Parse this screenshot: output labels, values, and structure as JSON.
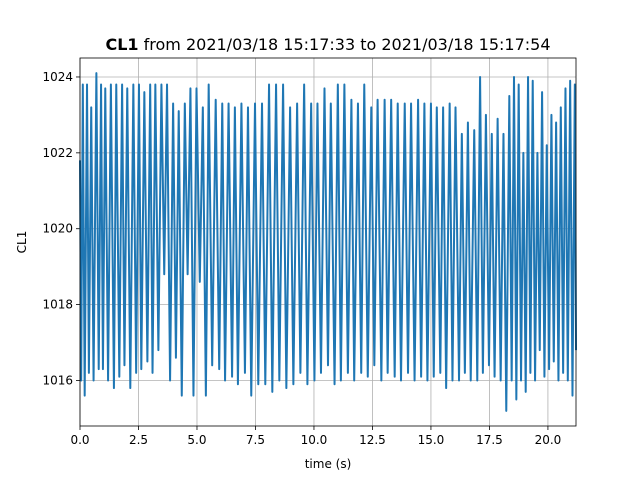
{
  "chart_data": {
    "type": "line",
    "title_bold": "CL1",
    "title_rest": " from 2021/03/18 15:17:33 to 2021/03/18 15:17:54",
    "xlabel": "time (s)",
    "ylabel": "CL1",
    "xlim": [
      0,
      21.2
    ],
    "ylim": [
      1014.8,
      1024.5
    ],
    "xticks": [
      0,
      2.5,
      5,
      7.5,
      10,
      12.5,
      15,
      17.5,
      20
    ],
    "xtick_labels": [
      "0.0",
      "2.5",
      "5.0",
      "7.5",
      "10.0",
      "12.5",
      "15.0",
      "17.5",
      "20.0"
    ],
    "yticks": [
      1016,
      1018,
      1020,
      1022,
      1024
    ],
    "ytick_labels": [
      "1016",
      "1018",
      "1020",
      "1022",
      "1024"
    ],
    "grid": true,
    "line_color": "#1f77b4",
    "series": [
      {
        "x": [
          0.0,
          0.05,
          0.12,
          0.2,
          0.3,
          0.38,
          0.48,
          0.58,
          0.7,
          0.8,
          0.9,
          0.98,
          1.08,
          1.2,
          1.32,
          1.45,
          1.55,
          1.68,
          1.8,
          1.9,
          2.02,
          2.15,
          2.28,
          2.4,
          2.52,
          2.62,
          2.75,
          2.88,
          3.0,
          3.1,
          3.22,
          3.35,
          3.48,
          3.6,
          3.72,
          3.85,
          3.98,
          4.1,
          4.22,
          4.35,
          4.48,
          4.6,
          4.72,
          4.85,
          4.98,
          5.12,
          5.25,
          5.38,
          5.5,
          5.65,
          5.8,
          5.95,
          6.08,
          6.2,
          6.35,
          6.5,
          6.62,
          6.75,
          6.9,
          7.05,
          7.18,
          7.32,
          7.48,
          7.62,
          7.78,
          7.92,
          8.08,
          8.22,
          8.38,
          8.52,
          8.68,
          8.82,
          8.98,
          9.12,
          9.28,
          9.42,
          9.58,
          9.72,
          9.88,
          10.02,
          10.15,
          10.3,
          10.45,
          10.6,
          10.72,
          10.88,
          11.02,
          11.15,
          11.3,
          11.45,
          11.6,
          11.72,
          11.88,
          12.02,
          12.15,
          12.3,
          12.45,
          12.58,
          12.72,
          12.88,
          13.02,
          13.15,
          13.3,
          13.45,
          13.58,
          13.72,
          13.88,
          14.02,
          14.15,
          14.3,
          14.45,
          14.58,
          14.72,
          14.85,
          15.0,
          15.12,
          15.25,
          15.4,
          15.52,
          15.65,
          15.8,
          15.92,
          16.05,
          16.2,
          16.32,
          16.45,
          16.58,
          16.7,
          16.85,
          16.98,
          17.1,
          17.22,
          17.35,
          17.48,
          17.6,
          17.72,
          17.85,
          17.98,
          18.1,
          18.22,
          18.35,
          18.45,
          18.55,
          18.65,
          18.75,
          18.85,
          18.95,
          19.05,
          19.15,
          19.25,
          19.35,
          19.45,
          19.55,
          19.65,
          19.75,
          19.85,
          19.95,
          20.05,
          20.15,
          20.25,
          20.35,
          20.45,
          20.55,
          20.65,
          20.75,
          20.85,
          20.95,
          21.05,
          21.15,
          21.2
        ],
        "y": [
          1021.8,
          1016.0,
          1023.8,
          1015.6,
          1023.8,
          1016.2,
          1023.2,
          1016.0,
          1024.1,
          1016.3,
          1023.8,
          1016.3,
          1023.7,
          1016.0,
          1023.8,
          1015.8,
          1023.8,
          1016.1,
          1023.8,
          1016.4,
          1023.7,
          1015.8,
          1023.8,
          1016.2,
          1023.8,
          1016.3,
          1023.6,
          1016.5,
          1023.8,
          1016.2,
          1023.8,
          1016.8,
          1023.8,
          1018.8,
          1023.8,
          1016.0,
          1023.3,
          1016.6,
          1023.1,
          1015.6,
          1023.3,
          1018.8,
          1023.7,
          1015.6,
          1023.7,
          1018.6,
          1023.2,
          1015.6,
          1023.8,
          1016.4,
          1023.4,
          1016.3,
          1023.3,
          1016.0,
          1023.3,
          1016.1,
          1023.2,
          1015.9,
          1023.3,
          1016.2,
          1023.2,
          1015.6,
          1023.3,
          1015.9,
          1023.3,
          1015.9,
          1023.8,
          1015.7,
          1023.8,
          1016.0,
          1023.8,
          1015.8,
          1023.2,
          1015.9,
          1023.3,
          1016.2,
          1023.8,
          1015.9,
          1023.3,
          1016.0,
          1023.3,
          1016.2,
          1023.7,
          1016.4,
          1023.3,
          1015.9,
          1023.8,
          1016.0,
          1023.8,
          1016.2,
          1023.4,
          1016.0,
          1023.3,
          1016.2,
          1023.8,
          1016.1,
          1023.2,
          1016.4,
          1023.4,
          1016.0,
          1023.4,
          1016.2,
          1023.4,
          1016.1,
          1023.3,
          1016.0,
          1023.3,
          1016.2,
          1023.3,
          1016.0,
          1023.4,
          1016.1,
          1023.3,
          1016.0,
          1023.3,
          1016.1,
          1023.2,
          1016.2,
          1023.2,
          1015.8,
          1023.3,
          1016.0,
          1023.2,
          1016.0,
          1022.5,
          1016.2,
          1022.8,
          1016.0,
          1022.6,
          1016.0,
          1024.0,
          1016.2,
          1023.0,
          1016.4,
          1022.5,
          1016.1,
          1022.9,
          1016.0,
          1022.5,
          1015.2,
          1023.5,
          1016.0,
          1024.0,
          1015.5,
          1023.8,
          1016.0,
          1022.0,
          1015.7,
          1024.0,
          1016.2,
          1023.9,
          1016.0,
          1022.0,
          1016.8,
          1023.6,
          1016.1,
          1022.2,
          1016.3,
          1023.0,
          1016.5,
          1022.8,
          1016.0,
          1023.2,
          1016.2,
          1023.7,
          1016.0,
          1023.9,
          1015.6,
          1023.8,
          1016.8
        ]
      }
    ]
  }
}
